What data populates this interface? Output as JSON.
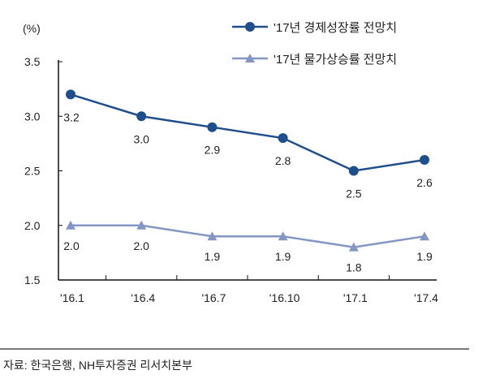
{
  "chart_data": {
    "type": "line",
    "ylabel": "(%)",
    "categories": [
      "'16.1",
      "'16.4",
      "'16.7",
      "'16.10",
      "'17.1",
      "'17.4"
    ],
    "ylim": [
      1.5,
      3.5
    ],
    "yticks": [
      "1.5",
      "2.0",
      "2.5",
      "3.0",
      "3.5"
    ],
    "grid": false,
    "legend_position": "top-right",
    "series": [
      {
        "name": "'17년 경제성장률 전망치",
        "values": [
          3.2,
          3.0,
          2.9,
          2.8,
          2.5,
          2.6
        ],
        "labels": [
          "3.2",
          "3.0",
          "2.9",
          "2.8",
          "2.5",
          "2.6"
        ],
        "color": "#1f4e8c",
        "marker": "circle"
      },
      {
        "name": "'17년 물가상승률 전망치",
        "values": [
          2.0,
          2.0,
          1.9,
          1.9,
          1.8,
          1.9
        ],
        "labels": [
          "2.0",
          "2.0",
          "1.9",
          "1.9",
          "1.8",
          "1.9"
        ],
        "color": "#8496c4",
        "marker": "triangle"
      }
    ]
  },
  "source": "자료: 한국은행, NH투자증권 리서치본부"
}
